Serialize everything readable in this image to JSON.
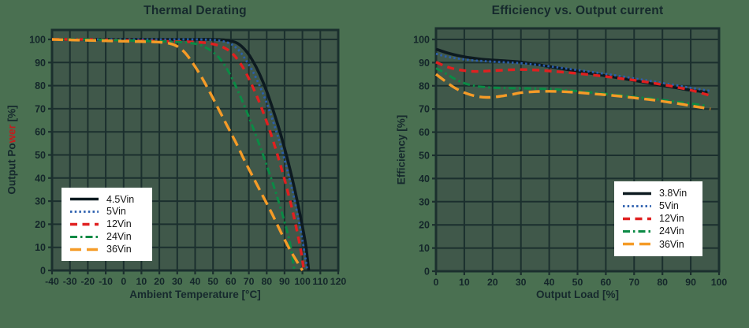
{
  "page": {
    "background": "#4a7051",
    "plot_background": "#40584a",
    "grid_color": "#1b2f2e",
    "ink": "#14262a",
    "legend_background": "#ffffff",
    "accent_red": "#c11e1e"
  },
  "chart_data": [
    {
      "type": "line",
      "title": "Thermal Derating",
      "xlabel": "Ambient Temperature [°C]",
      "ylabel": "Output Power [%]",
      "ylabel_parts": {
        "prefix": "Output Po",
        "red": "wer",
        "suffix": " [%]"
      },
      "xlim": [
        -40,
        120
      ],
      "ylim": [
        0,
        104
      ],
      "grid": true,
      "legend_position": "lower-left",
      "x_ticks": [
        -40,
        -30,
        -20,
        -10,
        0,
        10,
        20,
        30,
        40,
        50,
        60,
        70,
        80,
        90,
        100,
        110,
        120
      ],
      "y_ticks": [
        0,
        10,
        20,
        30,
        40,
        50,
        60,
        70,
        80,
        90,
        100
      ],
      "series": [
        {
          "name": "4.5Vin",
          "color": "#0d1a20",
          "style": "solid",
          "points": [
            [
              -40,
              100
            ],
            [
              -20,
              100
            ],
            [
              0,
              100
            ],
            [
              20,
              100
            ],
            [
              40,
              100
            ],
            [
              50,
              100
            ],
            [
              56,
              99.8
            ],
            [
              60,
              99.3
            ],
            [
              63,
              98.6
            ],
            [
              66,
              97
            ],
            [
              69,
              94.5
            ],
            [
              72,
              91
            ],
            [
              76,
              85
            ],
            [
              80,
              77.5
            ],
            [
              84,
              68.5
            ],
            [
              88,
              58.5
            ],
            [
              92,
              47
            ],
            [
              96,
              34
            ],
            [
              100,
              19
            ],
            [
              102,
              10
            ],
            [
              103.5,
              0
            ]
          ]
        },
        {
          "name": "5Vin",
          "color": "#2b5fae",
          "style": "dotted",
          "points": [
            [
              -40,
              100
            ],
            [
              -20,
              100
            ],
            [
              0,
              100
            ],
            [
              20,
              100
            ],
            [
              40,
              100
            ],
            [
              50,
              99.8
            ],
            [
              55,
              99.3
            ],
            [
              59,
              98.4
            ],
            [
              62,
              97
            ],
            [
              65,
              94.8
            ],
            [
              68,
              91.5
            ],
            [
              72,
              86.5
            ],
            [
              76,
              80
            ],
            [
              80,
              72.5
            ],
            [
              84,
              63.5
            ],
            [
              88,
              53.5
            ],
            [
              92,
              42
            ],
            [
              96,
              29
            ],
            [
              100,
              13
            ],
            [
              102.7,
              0
            ]
          ]
        },
        {
          "name": "12Vin",
          "color": "#e02020",
          "style": "dashed",
          "points": [
            [
              -40,
              100
            ],
            [
              -20,
              100
            ],
            [
              0,
              99.6
            ],
            [
              20,
              99.2
            ],
            [
              35,
              99
            ],
            [
              45,
              98.6
            ],
            [
              51,
              97.8
            ],
            [
              56,
              96.5
            ],
            [
              60,
              94.5
            ],
            [
              63,
              92
            ],
            [
              67,
              87.5
            ],
            [
              71,
              81.5
            ],
            [
              75,
              74.5
            ],
            [
              79,
              66.5
            ],
            [
              83,
              57.5
            ],
            [
              87,
              47.5
            ],
            [
              91,
              36.5
            ],
            [
              95,
              24
            ],
            [
              99,
              9
            ],
            [
              100.8,
              0
            ]
          ]
        },
        {
          "name": "24Vin",
          "color": "#0b8a45",
          "style": "dashdot",
          "points": [
            [
              -40,
              100
            ],
            [
              -20,
              100
            ],
            [
              0,
              99.6
            ],
            [
              15,
              99.3
            ],
            [
              28,
              99
            ],
            [
              36,
              98.6
            ],
            [
              42,
              97.8
            ],
            [
              46,
              96.5
            ],
            [
              50,
              94.5
            ],
            [
              54,
              91.5
            ],
            [
              58,
              87
            ],
            [
              62,
              81
            ],
            [
              66,
              74
            ],
            [
              70,
              66.5
            ],
            [
              74,
              58.5
            ],
            [
              78,
              50
            ],
            [
              82,
              41
            ],
            [
              86,
              31.5
            ],
            [
              90,
              21
            ],
            [
              93,
              12
            ],
            [
              95.5,
              0
            ]
          ]
        },
        {
          "name": "36Vin",
          "color": "#f59b27",
          "style": "longdash",
          "points": [
            [
              -40,
              100
            ],
            [
              -20,
              99.6
            ],
            [
              0,
              99.2
            ],
            [
              12,
              99
            ],
            [
              20,
              98.8
            ],
            [
              26,
              98.2
            ],
            [
              30,
              97
            ],
            [
              34,
              94.5
            ],
            [
              38,
              90.5
            ],
            [
              43,
              84.5
            ],
            [
              48,
              77.5
            ],
            [
              53,
              70
            ],
            [
              58,
              62.5
            ],
            [
              63,
              55
            ],
            [
              68,
              47
            ],
            [
              73,
              39.5
            ],
            [
              78,
              32
            ],
            [
              83,
              24.5
            ],
            [
              88,
              16.5
            ],
            [
              93,
              9
            ],
            [
              100,
              0
            ]
          ]
        }
      ]
    },
    {
      "type": "line",
      "title": "Efficiency vs. Output current",
      "xlabel": "Output Load [%]",
      "ylabel": "Efficiency [%]",
      "ylabel_parts": {
        "prefix": "Efficiency [%]",
        "red": "",
        "suffix": ""
      },
      "xlim": [
        0,
        100
      ],
      "ylim": [
        0,
        104
      ],
      "grid": true,
      "legend_position": "lower-right",
      "x_ticks": [
        0,
        10,
        20,
        30,
        40,
        50,
        60,
        70,
        80,
        90,
        100
      ],
      "y_ticks": [
        0,
        10,
        20,
        30,
        40,
        50,
        60,
        70,
        80,
        90,
        100
      ],
      "series": [
        {
          "name": "3.8Vin",
          "color": "#0d1a20",
          "style": "solid",
          "points": [
            [
              0,
              95.8
            ],
            [
              4,
              94.2
            ],
            [
              8,
              93
            ],
            [
              12,
              92.1
            ],
            [
              16,
              91.5
            ],
            [
              20,
              91.1
            ],
            [
              25,
              90.7
            ],
            [
              30,
              90.2
            ],
            [
              35,
              89.3
            ],
            [
              40,
              88.3
            ],
            [
              45,
              87.3
            ],
            [
              50,
              86.3
            ],
            [
              55,
              85.3
            ],
            [
              60,
              84.3
            ],
            [
              65,
              83.3
            ],
            [
              70,
              82.3
            ],
            [
              75,
              81.2
            ],
            [
              80,
              80.1
            ],
            [
              85,
              79.1
            ],
            [
              90,
              78.1
            ],
            [
              96,
              77.2
            ]
          ]
        },
        {
          "name": "5Vin",
          "color": "#2b5fae",
          "style": "dotted",
          "points": [
            [
              0,
              93.8
            ],
            [
              4,
              92.5
            ],
            [
              8,
              91.7
            ],
            [
              12,
              91.1
            ],
            [
              16,
              90.7
            ],
            [
              20,
              90.4
            ],
            [
              25,
              90.1
            ],
            [
              30,
              89.7
            ],
            [
              35,
              89.1
            ],
            [
              40,
              88.4
            ],
            [
              45,
              87.6
            ],
            [
              50,
              86.8
            ],
            [
              55,
              86
            ],
            [
              60,
              85.1
            ],
            [
              65,
              84.2
            ],
            [
              70,
              83.2
            ],
            [
              75,
              82.2
            ],
            [
              80,
              81.2
            ],
            [
              85,
              80.2
            ],
            [
              90,
              79.1
            ],
            [
              97,
              77.8
            ]
          ]
        },
        {
          "name": "12Vin",
          "color": "#e02020",
          "style": "dashed",
          "points": [
            [
              0,
              90.2
            ],
            [
              3,
              88.6
            ],
            [
              6,
              87.4
            ],
            [
              9,
              86.7
            ],
            [
              12,
              86.3
            ],
            [
              15,
              86.2
            ],
            [
              20,
              86.5
            ],
            [
              25,
              86.8
            ],
            [
              30,
              87
            ],
            [
              35,
              86.8
            ],
            [
              40,
              86.4
            ],
            [
              45,
              85.9
            ],
            [
              50,
              85.3
            ],
            [
              55,
              84.7
            ],
            [
              60,
              84
            ],
            [
              65,
              83.2
            ],
            [
              70,
              82.4
            ],
            [
              75,
              81.5
            ],
            [
              80,
              80.5
            ],
            [
              85,
              79.4
            ],
            [
              90,
              78.1
            ],
            [
              94,
              76.8
            ],
            [
              97,
              75.7
            ]
          ]
        },
        {
          "name": "24Vin",
          "color": "#0b8a45",
          "style": "dashdot",
          "points": [
            [
              0,
              87.6
            ],
            [
              3,
              85.6
            ],
            [
              6,
              83.4
            ],
            [
              9,
              81.6
            ],
            [
              12,
              80.4
            ],
            [
              15,
              79.7
            ],
            [
              20,
              79.2
            ],
            [
              25,
              79
            ],
            [
              30,
              78.9
            ],
            [
              35,
              78.8
            ],
            [
              40,
              78.6
            ],
            [
              45,
              78.2
            ],
            [
              50,
              77.7
            ],
            [
              55,
              77.1
            ],
            [
              60,
              76.5
            ],
            [
              65,
              75.9
            ],
            [
              70,
              75.2
            ],
            [
              75,
              74.6
            ],
            [
              80,
              73.9
            ],
            [
              85,
              73.1
            ],
            [
              90,
              72.3
            ],
            [
              96,
              71.3
            ]
          ]
        },
        {
          "name": "36Vin",
          "color": "#f59b27",
          "style": "longdash",
          "points": [
            [
              0,
              85
            ],
            [
              3,
              82.2
            ],
            [
              6,
              79.6
            ],
            [
              9,
              77.6
            ],
            [
              12,
              76.2
            ],
            [
              15,
              75.3
            ],
            [
              18,
              75
            ],
            [
              21,
              75.2
            ],
            [
              24,
              75.7
            ],
            [
              27,
              76.3
            ],
            [
              30,
              77
            ],
            [
              34,
              77.4
            ],
            [
              38,
              77.6
            ],
            [
              42,
              77.6
            ],
            [
              46,
              77.4
            ],
            [
              50,
              77.1
            ],
            [
              55,
              76.6
            ],
            [
              60,
              76.1
            ],
            [
              65,
              75.5
            ],
            [
              70,
              74.8
            ],
            [
              75,
              74.1
            ],
            [
              80,
              73.3
            ],
            [
              85,
              72.4
            ],
            [
              90,
              71.4
            ],
            [
              97,
              70
            ]
          ]
        }
      ]
    }
  ]
}
